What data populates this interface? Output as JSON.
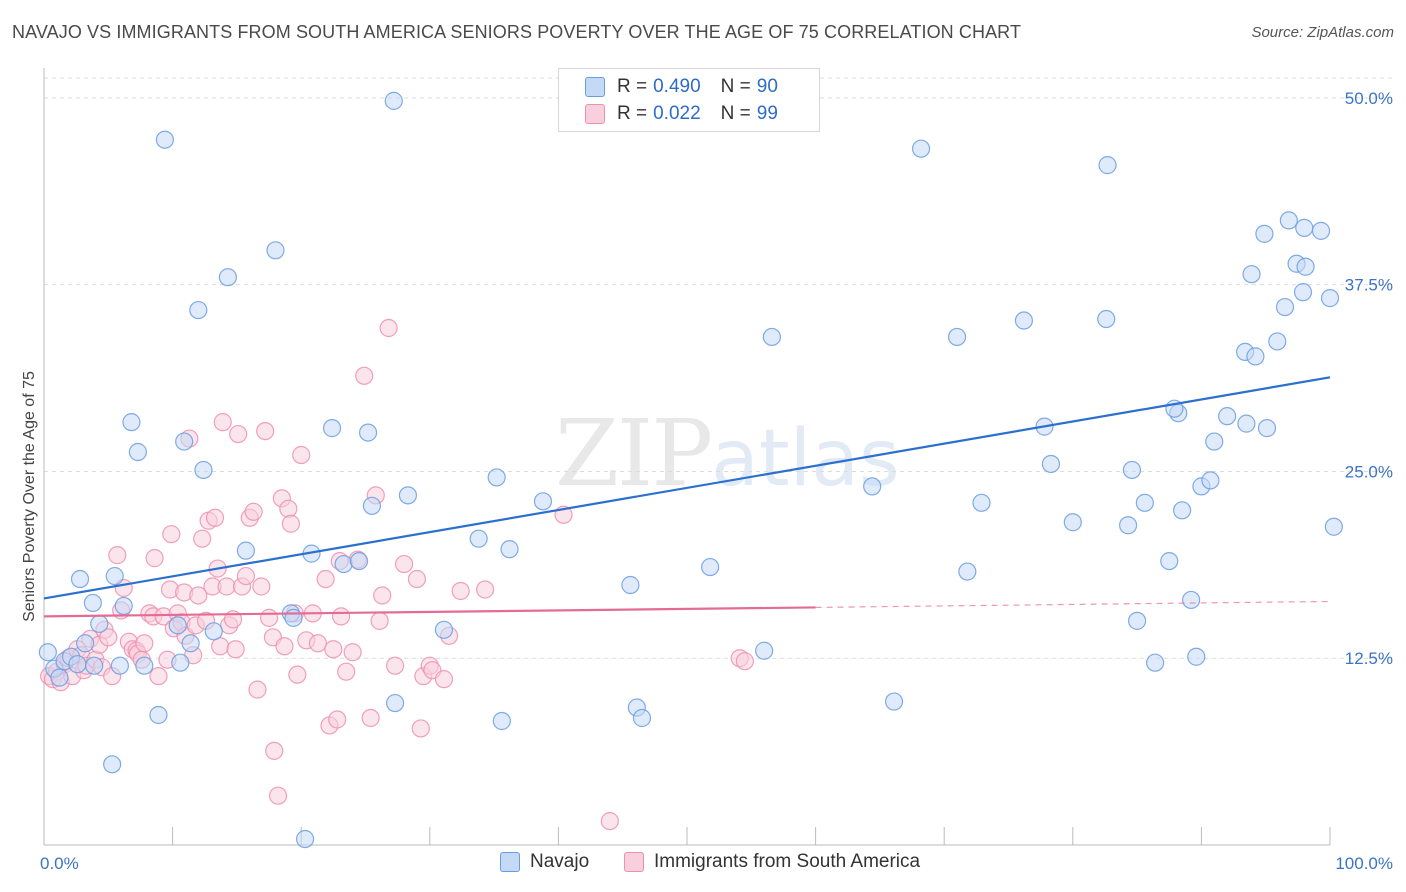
{
  "header": {
    "title": "NAVAJO VS IMMIGRANTS FROM SOUTH AMERICA SENIORS POVERTY OVER THE AGE OF 75 CORRELATION CHART",
    "source": "Source: ZipAtlas.com"
  },
  "watermark": {
    "zip": "ZIP",
    "atlas": "atlas"
  },
  "legend": {
    "rows": [
      {
        "r_label": "R =",
        "r_value": "0.490",
        "n_label": "N =",
        "n_value": "90",
        "color": "#a9c8f2"
      },
      {
        "r_label": "R =",
        "r_value": "0.022",
        "n_label": "N =",
        "n_value": "99",
        "color": "#f5b9cb"
      }
    ]
  },
  "bottom_legend": {
    "items": [
      {
        "label": "Navajo",
        "color": "#a9c8f2"
      },
      {
        "label": "Immigrants from South America",
        "color": "#f5b9cb"
      }
    ]
  },
  "chart_data": {
    "type": "scatter",
    "title": "NAVAJO VS IMMIGRANTS FROM SOUTH AMERICA SENIORS POVERTY OVER THE AGE OF 75 CORRELATION CHART",
    "xlabel": "",
    "ylabel": "Seniors Poverty Over the Age of 75",
    "xlim": [
      0,
      100
    ],
    "ylim": [
      0,
      52
    ],
    "x_tick_labels": [
      "0.0%",
      "100.0%"
    ],
    "y_ticks": [
      12.5,
      25.0,
      37.5,
      50.0
    ],
    "y_tick_labels": [
      "12.5%",
      "25.0%",
      "37.5%",
      "50.0%"
    ],
    "grid": true,
    "colors": {
      "navajo": "#6a9de0",
      "navajo_fill": "#c4d9f5",
      "sa": "#ee8fb0",
      "sa_fill": "#f8cfdc",
      "navajo_trend": "#2b6fcf",
      "sa_trend": "#e46b95"
    },
    "series": [
      {
        "name": "Navajo",
        "trend": {
          "x": [
            0,
            100
          ],
          "y": [
            16.5,
            31.3
          ],
          "solid_to": 100
        },
        "points": [
          [
            0.3,
            12.9
          ],
          [
            0.8,
            11.8
          ],
          [
            1.2,
            11.2
          ],
          [
            1.6,
            12.3
          ],
          [
            2.1,
            12.6
          ],
          [
            2.6,
            12.1
          ],
          [
            3.2,
            13.5
          ],
          [
            2.8,
            17.8
          ],
          [
            3.9,
            12.0
          ],
          [
            3.8,
            16.2
          ],
          [
            4.3,
            14.8
          ],
          [
            5.3,
            5.4
          ],
          [
            5.5,
            18.0
          ],
          [
            6.2,
            16.0
          ],
          [
            5.9,
            12.0
          ],
          [
            6.8,
            28.3
          ],
          [
            7.3,
            26.3
          ],
          [
            7.8,
            12.0
          ],
          [
            8.9,
            8.7
          ],
          [
            9.4,
            47.2
          ],
          [
            10.4,
            14.7
          ],
          [
            10.6,
            12.2
          ],
          [
            10.9,
            27.0
          ],
          [
            11.4,
            13.5
          ],
          [
            12.0,
            35.8
          ],
          [
            12.4,
            25.1
          ],
          [
            13.2,
            14.3
          ],
          [
            14.3,
            38.0
          ],
          [
            15.7,
            19.7
          ],
          [
            18.0,
            39.8
          ],
          [
            19.2,
            15.5
          ],
          [
            19.4,
            15.2
          ],
          [
            20.3,
            0.4
          ],
          [
            20.8,
            19.5
          ],
          [
            22.4,
            27.9
          ],
          [
            23.3,
            18.8
          ],
          [
            24.5,
            19.0
          ],
          [
            25.2,
            27.6
          ],
          [
            25.5,
            22.7
          ],
          [
            27.2,
            49.8
          ],
          [
            27.3,
            9.5
          ],
          [
            28.3,
            23.4
          ],
          [
            31.1,
            14.4
          ],
          [
            33.8,
            20.5
          ],
          [
            35.2,
            24.6
          ],
          [
            35.6,
            8.3
          ],
          [
            36.2,
            19.8
          ],
          [
            38.8,
            23.0
          ],
          [
            45.6,
            17.4
          ],
          [
            46.1,
            9.2
          ],
          [
            46.5,
            8.5
          ],
          [
            51.8,
            18.6
          ],
          [
            56.0,
            13.0
          ],
          [
            56.6,
            34.0
          ],
          [
            64.4,
            24.0
          ],
          [
            66.1,
            9.6
          ],
          [
            68.2,
            46.6
          ],
          [
            71.0,
            34.0
          ],
          [
            71.8,
            18.3
          ],
          [
            72.9,
            22.9
          ],
          [
            76.2,
            35.1
          ],
          [
            77.8,
            28.0
          ],
          [
            78.3,
            25.5
          ],
          [
            80.0,
            21.6
          ],
          [
            82.6,
            35.2
          ],
          [
            82.7,
            45.5
          ],
          [
            84.3,
            21.4
          ],
          [
            84.6,
            25.1
          ],
          [
            85.0,
            15.0
          ],
          [
            85.6,
            22.9
          ],
          [
            86.4,
            12.2
          ],
          [
            87.5,
            19.0
          ],
          [
            88.2,
            28.9
          ],
          [
            88.5,
            22.4
          ],
          [
            89.2,
            16.4
          ],
          [
            90.0,
            24.0
          ],
          [
            90.7,
            24.4
          ],
          [
            91.0,
            27.0
          ],
          [
            92.0,
            28.7
          ],
          [
            93.4,
            33.0
          ],
          [
            93.5,
            28.2
          ],
          [
            94.2,
            32.7
          ],
          [
            94.9,
            40.9
          ],
          [
            95.1,
            27.9
          ],
          [
            95.9,
            33.7
          ],
          [
            96.5,
            36.0
          ],
          [
            97.9,
            37.0
          ],
          [
            98.0,
            41.3
          ],
          [
            100.0,
            36.6
          ],
          [
            100.3,
            21.3
          ],
          [
            96.8,
            41.8
          ],
          [
            97.4,
            38.9
          ],
          [
            98.1,
            38.7
          ],
          [
            99.3,
            41.1
          ],
          [
            93.9,
            38.2
          ],
          [
            87.9,
            29.2
          ],
          [
            89.6,
            12.6
          ]
        ]
      },
      {
        "name": "Immigrants from South America",
        "trend": {
          "x": [
            0,
            100
          ],
          "y": [
            15.3,
            16.3
          ],
          "solid_to": 60
        },
        "points": [
          [
            0.4,
            11.3
          ],
          [
            0.7,
            11.1
          ],
          [
            1.0,
            11.6
          ],
          [
            1.3,
            10.9
          ],
          [
            1.6,
            12.1
          ],
          [
            1.9,
            12.5
          ],
          [
            2.2,
            11.3
          ],
          [
            2.6,
            13.1
          ],
          [
            2.9,
            12.7
          ],
          [
            3.1,
            11.7
          ],
          [
            3.3,
            12.0
          ],
          [
            3.6,
            13.8
          ],
          [
            4.0,
            12.4
          ],
          [
            4.3,
            13.4
          ],
          [
            4.5,
            11.9
          ],
          [
            4.7,
            14.4
          ],
          [
            5.0,
            13.9
          ],
          [
            5.3,
            11.3
          ],
          [
            5.7,
            19.4
          ],
          [
            6.0,
            15.7
          ],
          [
            6.2,
            17.2
          ],
          [
            6.6,
            13.6
          ],
          [
            6.9,
            13.1
          ],
          [
            7.2,
            13.0
          ],
          [
            7.3,
            12.8
          ],
          [
            7.6,
            12.4
          ],
          [
            7.8,
            13.5
          ],
          [
            8.2,
            15.5
          ],
          [
            8.5,
            15.3
          ],
          [
            8.6,
            19.2
          ],
          [
            8.9,
            11.3
          ],
          [
            9.3,
            15.3
          ],
          [
            9.6,
            12.4
          ],
          [
            9.8,
            17.1
          ],
          [
            9.9,
            20.8
          ],
          [
            10.1,
            14.5
          ],
          [
            10.4,
            15.5
          ],
          [
            10.7,
            14.9
          ],
          [
            10.9,
            16.9
          ],
          [
            11.0,
            14.0
          ],
          [
            11.3,
            27.2
          ],
          [
            11.6,
            12.7
          ],
          [
            11.8,
            14.7
          ],
          [
            12.0,
            16.7
          ],
          [
            12.3,
            20.5
          ],
          [
            12.6,
            15.0
          ],
          [
            12.8,
            21.7
          ],
          [
            13.1,
            17.3
          ],
          [
            13.3,
            21.9
          ],
          [
            13.5,
            18.5
          ],
          [
            13.7,
            13.3
          ],
          [
            13.9,
            28.3
          ],
          [
            14.2,
            17.3
          ],
          [
            14.4,
            14.7
          ],
          [
            14.7,
            15.1
          ],
          [
            14.9,
            13.1
          ],
          [
            15.1,
            27.5
          ],
          [
            15.4,
            17.3
          ],
          [
            15.7,
            18.0
          ],
          [
            16.0,
            21.9
          ],
          [
            16.3,
            22.3
          ],
          [
            16.6,
            10.4
          ],
          [
            16.9,
            17.3
          ],
          [
            17.2,
            27.7
          ],
          [
            17.5,
            15.2
          ],
          [
            17.8,
            13.9
          ],
          [
            17.9,
            6.3
          ],
          [
            18.2,
            3.3
          ],
          [
            18.5,
            23.2
          ],
          [
            18.7,
            13.3
          ],
          [
            19.0,
            22.5
          ],
          [
            19.2,
            21.5
          ],
          [
            19.5,
            15.5
          ],
          [
            19.7,
            11.4
          ],
          [
            20.0,
            26.1
          ],
          [
            20.4,
            13.7
          ],
          [
            20.9,
            15.5
          ],
          [
            21.3,
            13.5
          ],
          [
            21.9,
            17.8
          ],
          [
            22.2,
            8.0
          ],
          [
            22.5,
            13.1
          ],
          [
            22.8,
            8.4
          ],
          [
            23.0,
            19.0
          ],
          [
            23.1,
            15.3
          ],
          [
            23.5,
            11.6
          ],
          [
            24.0,
            12.9
          ],
          [
            24.4,
            19.1
          ],
          [
            24.9,
            31.4
          ],
          [
            25.4,
            8.5
          ],
          [
            25.8,
            23.4
          ],
          [
            26.1,
            15.0
          ],
          [
            26.3,
            16.7
          ],
          [
            26.8,
            34.6
          ],
          [
            27.3,
            12.0
          ],
          [
            28.0,
            18.8
          ],
          [
            29.0,
            17.8
          ],
          [
            29.3,
            7.8
          ],
          [
            29.5,
            11.3
          ],
          [
            30.0,
            12.0
          ],
          [
            30.2,
            11.7
          ],
          [
            31.1,
            11.1
          ],
          [
            31.5,
            14.0
          ],
          [
            32.4,
            17.0
          ],
          [
            34.3,
            17.1
          ],
          [
            40.4,
            22.1
          ],
          [
            44.0,
            1.6
          ],
          [
            54.1,
            12.5
          ],
          [
            54.5,
            12.3
          ]
        ]
      }
    ]
  }
}
